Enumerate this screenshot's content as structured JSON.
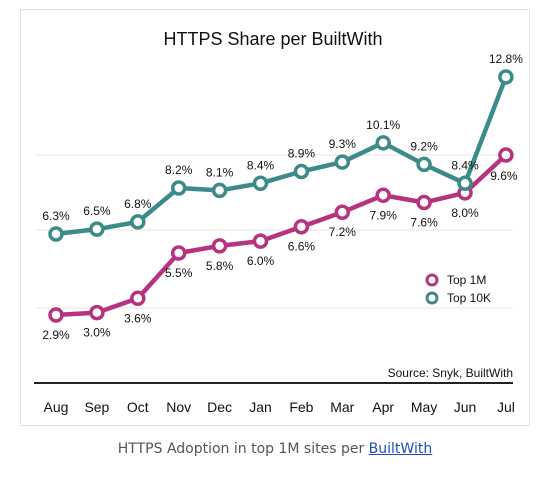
{
  "chart_data": {
    "type": "line",
    "title": "HTTPS Share per BuiltWith",
    "categories": [
      "Aug",
      "Sep",
      "Oct",
      "Nov",
      "Dec",
      "Jan",
      "Feb",
      "Mar",
      "Apr",
      "May",
      "Jun",
      "Jul"
    ],
    "series": [
      {
        "name": "Top 1M",
        "color": "#b6337f",
        "values": [
          2.9,
          3.0,
          3.6,
          5.5,
          5.8,
          6.0,
          6.6,
          7.2,
          7.9,
          7.6,
          8.0,
          9.6
        ]
      },
      {
        "name": "Top 10K",
        "color": "#3c8b89",
        "values": [
          6.3,
          6.5,
          6.8,
          8.2,
          8.1,
          8.4,
          8.9,
          9.3,
          10.1,
          9.2,
          8.4,
          12.8
        ]
      }
    ],
    "labels": {
      "top1m": [
        "2.9%",
        "3.0%",
        "3.6%",
        "5.5%",
        "5.8%",
        "6.0%",
        "6.6%",
        "7.2%",
        "7.9%",
        "7.6%",
        "8.0%",
        "9.6%"
      ],
      "top10k": [
        "6.3%",
        "6.5%",
        "6.8%",
        "8.2%",
        "8.1%",
        "8.4%",
        "8.9%",
        "9.3%",
        "10.1%",
        "9.2%",
        "8.4%",
        "12.8%"
      ]
    },
    "source": "Source: Snyk, BuiltWith",
    "legend_position": "bottom-right",
    "grid": true
  },
  "caption": {
    "prefix": "HTTPS Adoption in top 1M sites per ",
    "link": "BuiltWith"
  }
}
